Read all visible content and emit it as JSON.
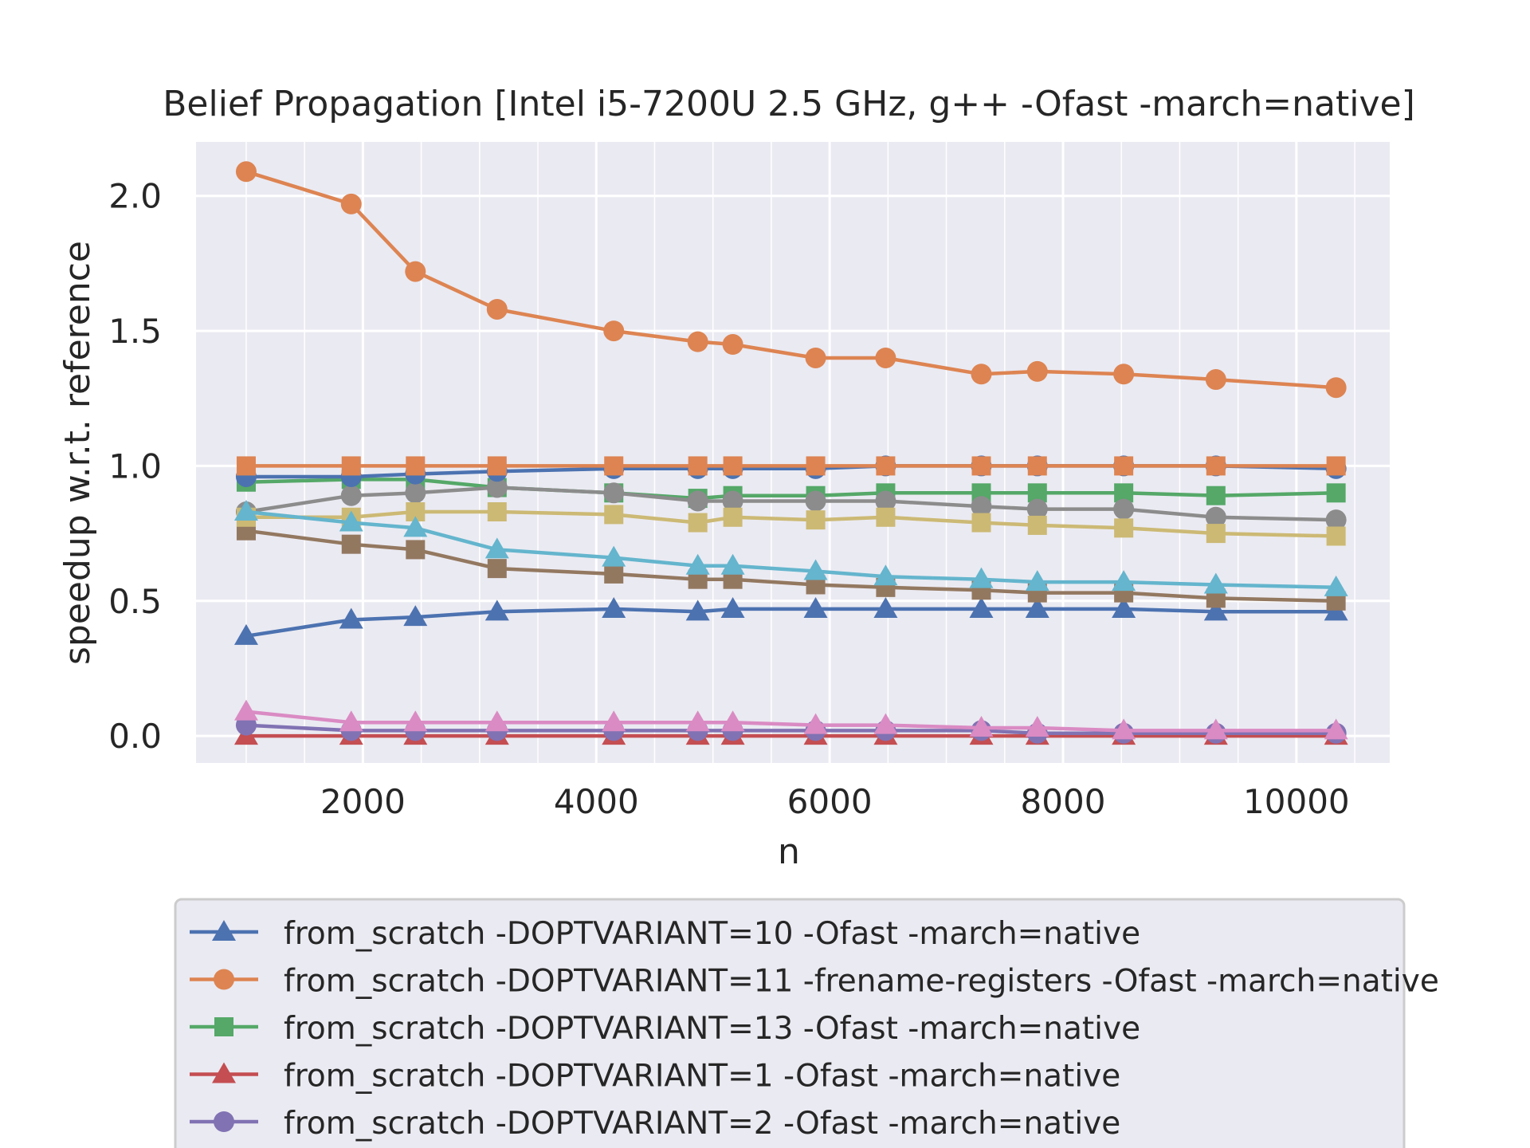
{
  "chart_data": {
    "type": "line",
    "title": "Belief Propagation [Intel i5-7200U 2.5 GHz, g++ -Ofast -march=native]",
    "xlabel": "n",
    "ylabel": "speedup w.r.t. reference",
    "xlim": [
      570,
      10800
    ],
    "ylim": [
      -0.1,
      2.2
    ],
    "xticks": [
      2000,
      4000,
      6000,
      8000,
      10000
    ],
    "xtick_labels": [
      "2000",
      "4000",
      "6000",
      "8000",
      "10000"
    ],
    "x_minor_ticks": [
      1000,
      1500,
      2500,
      3000,
      3500,
      4500,
      5000,
      5500,
      6500,
      7000,
      7500,
      8500,
      9000,
      9500,
      10500
    ],
    "yticks": [
      0.0,
      0.5,
      1.0,
      1.5,
      2.0
    ],
    "ytick_labels": [
      "0.0",
      "0.5",
      "1.0",
      "1.5",
      "2.0"
    ],
    "grid": true,
    "legend_position": "bottom",
    "x": [
      1000,
      1900,
      2450,
      3150,
      4150,
      4870,
      5170,
      5880,
      6480,
      7300,
      7780,
      8520,
      9310,
      10340
    ],
    "series": [
      {
        "name": "from_scratch -DOPTVARIANT=10 -Ofast -march=native",
        "color": "#4c72b0",
        "marker": "triangle",
        "values": [
          0.37,
          0.43,
          0.44,
          0.46,
          0.47,
          0.46,
          0.47,
          0.47,
          0.47,
          0.47,
          0.47,
          0.47,
          0.46,
          0.46
        ]
      },
      {
        "name": "from_scratch -DOPTVARIANT=11 -frename-registers -Ofast -march=native",
        "color": "#dd8452",
        "marker": "circle",
        "values": [
          2.09,
          1.97,
          1.72,
          1.58,
          1.5,
          1.46,
          1.45,
          1.4,
          1.4,
          1.34,
          1.35,
          1.34,
          1.32,
          1.29
        ]
      },
      {
        "name": "from_scratch -DOPTVARIANT=13 -Ofast -march=native",
        "color": "#55a868",
        "marker": "square",
        "values": [
          0.94,
          0.95,
          0.95,
          0.92,
          0.9,
          0.88,
          0.89,
          0.89,
          0.9,
          0.9,
          0.9,
          0.9,
          0.89,
          0.9
        ]
      },
      {
        "name": "from_scratch -DOPTVARIANT=1 -Ofast -march=native",
        "color": "#c44e52",
        "marker": "triangle",
        "values": [
          0.0,
          0.0,
          0.0,
          0.0,
          0.0,
          0.0,
          0.0,
          0.0,
          0.0,
          0.0,
          0.0,
          0.0,
          0.0,
          0.0
        ]
      },
      {
        "name": "from_scratch -DOPTVARIANT=2 -Ofast -march=native",
        "color": "#8172b3",
        "marker": "circle",
        "values": [
          0.04,
          0.02,
          0.02,
          0.02,
          0.02,
          0.02,
          0.02,
          0.02,
          0.02,
          0.02,
          0.01,
          0.01,
          0.01,
          0.01
        ]
      },
      {
        "name": "",
        "color": "#937860",
        "marker": "square",
        "values": [
          0.76,
          0.71,
          0.69,
          0.62,
          0.6,
          0.58,
          0.58,
          0.56,
          0.55,
          0.54,
          0.53,
          0.53,
          0.51,
          0.5
        ]
      },
      {
        "name": "",
        "color": "#da8bc3",
        "marker": "triangle",
        "values": [
          0.09,
          0.05,
          0.05,
          0.05,
          0.05,
          0.05,
          0.05,
          0.04,
          0.04,
          0.03,
          0.03,
          0.02,
          0.02,
          0.02
        ]
      },
      {
        "name": "",
        "color": "#8c8c8c",
        "marker": "circle",
        "values": [
          0.83,
          0.89,
          0.9,
          0.92,
          0.9,
          0.87,
          0.87,
          0.87,
          0.87,
          0.85,
          0.84,
          0.84,
          0.81,
          0.8
        ]
      },
      {
        "name": "",
        "color": "#ccb974",
        "marker": "square",
        "values": [
          0.81,
          0.81,
          0.83,
          0.83,
          0.82,
          0.79,
          0.81,
          0.8,
          0.81,
          0.79,
          0.78,
          0.77,
          0.75,
          0.74
        ]
      },
      {
        "name": "",
        "color": "#64b5cd",
        "marker": "triangle",
        "values": [
          0.83,
          0.79,
          0.77,
          0.69,
          0.66,
          0.63,
          0.63,
          0.61,
          0.59,
          0.58,
          0.57,
          0.57,
          0.56,
          0.55
        ]
      },
      {
        "name": "",
        "color": "#4c72b0",
        "marker": "circle",
        "values": [
          0.96,
          0.96,
          0.97,
          0.98,
          0.99,
          0.99,
          0.99,
          0.99,
          1.0,
          1.0,
          1.0,
          1.0,
          1.0,
          0.99
        ]
      },
      {
        "name": "",
        "color": "#dd8452",
        "marker": "square",
        "values": [
          1.0,
          1.0,
          1.0,
          1.0,
          1.0,
          1.0,
          1.0,
          1.0,
          1.0,
          1.0,
          1.0,
          1.0,
          1.0,
          1.0
        ]
      }
    ],
    "legend_visible_count": 5
  }
}
